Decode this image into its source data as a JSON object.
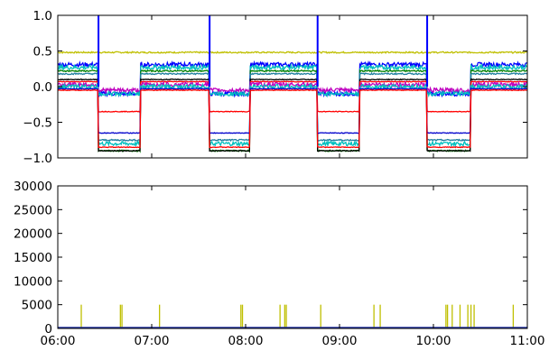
{
  "chart_data": [
    {
      "type": "line",
      "title": "",
      "xlabel": "",
      "ylabel": "",
      "ylim": [
        -1.0,
        1.0
      ],
      "y_ticks": [
        -1.0,
        -0.5,
        0.0,
        0.5,
        1.0
      ],
      "y_tick_labels": [
        "−1.0",
        "−0.5",
        "0.0",
        "0.5",
        "1.0"
      ],
      "xlim": [
        "06:00",
        "11:00"
      ],
      "x_ticks": [
        "06:00",
        "07:00",
        "08:00",
        "09:00",
        "10:00",
        "11:00"
      ],
      "grid": false,
      "legend": "none",
      "cycle_start_times": [
        "06:26",
        "07:37",
        "08:46",
        "09:56"
      ],
      "cycle_end_times": [
        "06:53",
        "08:03",
        "09:13",
        "10:24"
      ],
      "spike_peak": 1.0,
      "series": [
        {
          "color": "#bfbf00",
          "baseline": 0.48,
          "drop_level": 0.48,
          "noise": 0.01
        },
        {
          "color": "#0000ff",
          "baseline": 0.31,
          "drop_level": -0.1,
          "noise": 0.03
        },
        {
          "color": "#00bfbf",
          "baseline": 0.27,
          "drop_level": -0.8,
          "noise": 0.03
        },
        {
          "color": "#008000",
          "baseline": 0.22,
          "drop_level": -0.9,
          "noise": 0.01
        },
        {
          "color": "#1f7f9f",
          "baseline": 0.18,
          "drop_level": -0.75,
          "noise": 0.01
        },
        {
          "color": "#000000",
          "baseline": 0.1,
          "drop_level": -0.9,
          "noise": 0.005
        },
        {
          "color": "#ff0000",
          "baseline": 0.07,
          "drop_level": -0.35,
          "noise": 0.005
        },
        {
          "color": "#bf00bf",
          "baseline": 0.03,
          "drop_level": -0.05,
          "noise": 0.03
        },
        {
          "color": "#00bfbf",
          "baseline": 0.0,
          "drop_level": -0.1,
          "noise": 0.03
        },
        {
          "color": "#0000cc",
          "baseline": -0.03,
          "drop_level": -0.65,
          "noise": 0.005
        },
        {
          "color": "#ff0000",
          "baseline": -0.05,
          "drop_level": -0.85,
          "noise": 0.005
        }
      ]
    },
    {
      "type": "bar",
      "title": "",
      "xlabel": "",
      "ylabel": "",
      "ylim": [
        0,
        30000
      ],
      "y_ticks": [
        0,
        5000,
        10000,
        15000,
        20000,
        25000,
        30000
      ],
      "y_tick_labels": [
        "0",
        "5000",
        "10000",
        "15000",
        "20000",
        "25000",
        "30000"
      ],
      "xlim": [
        "06:00",
        "11:00"
      ],
      "x_ticks": [
        "06:00",
        "07:00",
        "08:00",
        "09:00",
        "10:00",
        "11:00"
      ],
      "grid": false,
      "legend": "none",
      "bar_color": "#bfbf00",
      "baseline_color": "#1f2f9f",
      "bars": [
        {
          "x": "06:15",
          "value": 5000
        },
        {
          "x": "06:40",
          "value": 5000
        },
        {
          "x": "06:41",
          "value": 5000
        },
        {
          "x": "07:05",
          "value": 5000
        },
        {
          "x": "07:57",
          "value": 5000
        },
        {
          "x": "07:58",
          "value": 5000
        },
        {
          "x": "08:22",
          "value": 5000
        },
        {
          "x": "08:25",
          "value": 5000
        },
        {
          "x": "08:26",
          "value": 5000
        },
        {
          "x": "08:48",
          "value": 5000
        },
        {
          "x": "09:22",
          "value": 5000
        },
        {
          "x": "09:26",
          "value": 5000
        },
        {
          "x": "10:08",
          "value": 5000
        },
        {
          "x": "10:09",
          "value": 5000
        },
        {
          "x": "10:12",
          "value": 5000
        },
        {
          "x": "10:17",
          "value": 5000
        },
        {
          "x": "10:22",
          "value": 5000
        },
        {
          "x": "10:24",
          "value": 5000
        },
        {
          "x": "10:26",
          "value": 5000
        },
        {
          "x": "10:51",
          "value": 5000
        }
      ]
    }
  ]
}
